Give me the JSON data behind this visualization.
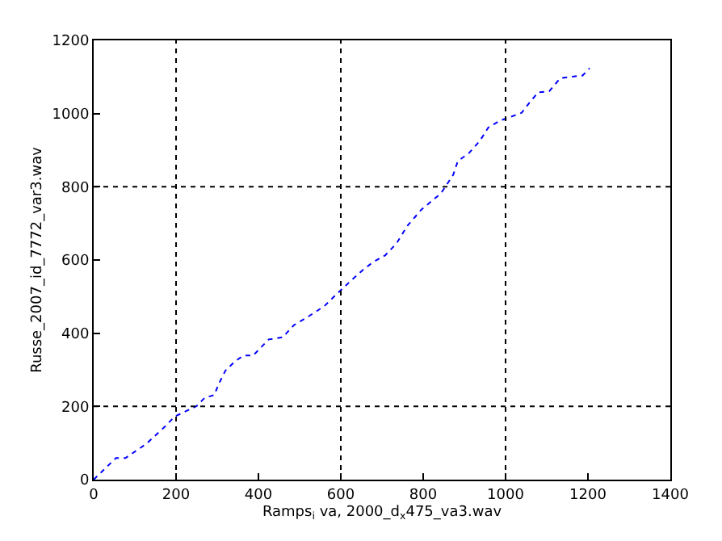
{
  "chart_data": {
    "type": "line",
    "xlabel": "Ramps$_{i}$ va, 2000_d$_{x}$475_va3.wav",
    "ylabel": "Russe_2007_id_7772_var3.wav",
    "xlim": [
      0,
      1400
    ],
    "xticks": [
      0,
      200,
      400,
      600,
      800,
      1000,
      1200,
      1400
    ],
    "ylim": [
      0,
      1200
    ],
    "yticks": [
      0,
      200,
      400,
      600,
      800,
      1000,
      1200
    ],
    "line_style": "dotted",
    "ref_lines": [
      {
        "axis": "x",
        "value": 200,
        "line_style": "dotted"
      },
      {
        "axis": "x",
        "value": 600,
        "line_style": "dotted"
      },
      {
        "axis": "x",
        "value": 1000,
        "line_style": "dotted"
      },
      {
        "axis": "y",
        "value": 200,
        "line_style": "dotted"
      },
      {
        "axis": "y",
        "value": 800,
        "line_style": "dotted"
      }
    ],
    "series": [
      {
        "color": "#0000ff",
        "x": [
          0,
          54,
          77,
          128,
          175,
          196,
          250,
          270,
          293,
          303,
          320,
          344,
          364,
          387,
          425,
          459,
          486,
          519,
          560,
          589,
          628,
          657,
          678,
          708,
          735,
          762,
          796,
          843,
          873,
          884,
          911,
          938,
          958,
          985,
          1039,
          1059,
          1079,
          1106,
          1133,
          1187,
          1204
        ],
        "values": [
          0,
          59,
          59,
          98,
          147,
          172,
          201,
          224,
          231,
          260,
          298,
          324,
          339,
          339,
          383,
          389,
          422,
          444,
          474,
          506,
          547,
          576,
          594,
          613,
          645,
          694,
          738,
          782,
          833,
          870,
          892,
          926,
          962,
          980,
          1002,
          1031,
          1058,
          1061,
          1097,
          1104,
          1124
        ]
      }
    ]
  }
}
